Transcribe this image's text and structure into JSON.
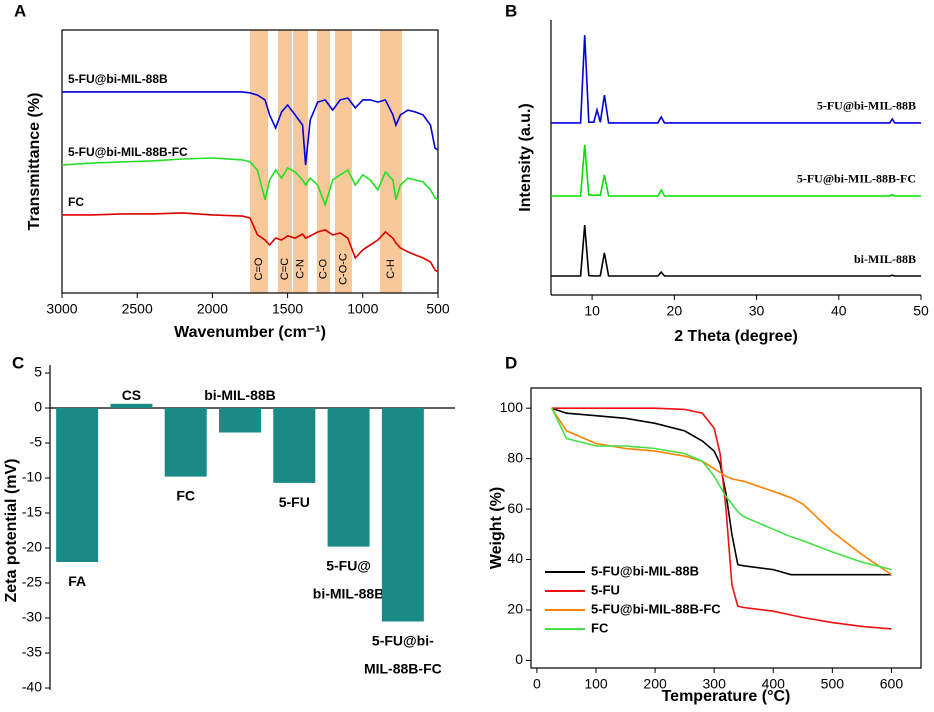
{
  "chart_data": [
    {
      "type": "line",
      "panel": "A",
      "xlabel": "Wavenumber (cm⁻¹)",
      "ylabel": "Transmittance (%)",
      "xlim": [
        3000,
        500
      ],
      "xticks": [
        3000,
        2500,
        2000,
        1500,
        1000,
        500
      ],
      "ylim": [
        -2.5,
        106.2
      ],
      "x": [
        3000,
        2800,
        2600,
        2400,
        2200,
        2000,
        1800,
        1750,
        1700,
        1650,
        1620,
        1580,
        1540,
        1500,
        1450,
        1400,
        1380,
        1350,
        1300,
        1250,
        1200,
        1150,
        1100,
        1050,
        1000,
        950,
        900,
        850,
        800,
        780,
        750,
        700,
        650,
        600,
        550,
        520,
        500
      ],
      "series": [
        {
          "name": "5-FU@bi-MIL-88B",
          "color": "#0000dd",
          "values": [
            80.6,
            80.6,
            80.6,
            80.6,
            80.6,
            80.6,
            80.6,
            80.2,
            79.3,
            77.3,
            71.1,
            65.7,
            72.3,
            75.2,
            71.1,
            66.9,
            50.4,
            69.0,
            76.4,
            77.3,
            73.1,
            77.3,
            78.1,
            74.0,
            77.3,
            77.3,
            76.4,
            77.3,
            71.1,
            66.9,
            71.1,
            73.1,
            72.3,
            71.1,
            66.9,
            57.4,
            56.6
          ]
        },
        {
          "name": "5-FU@bi-MIL-88B-FC",
          "color": "#22e022",
          "values": [
            50.4,
            51.2,
            51.7,
            52.1,
            52.9,
            53.3,
            52.5,
            51.7,
            48.3,
            36.0,
            44.2,
            48.3,
            45.0,
            49.2,
            47.5,
            44.2,
            42.1,
            45.0,
            42.1,
            33.9,
            44.2,
            46.3,
            48.3,
            42.1,
            46.3,
            44.2,
            40.1,
            47.5,
            44.2,
            36.0,
            42.1,
            45.0,
            44.2,
            43.4,
            40.1,
            36.8,
            36.0
          ]
        },
        {
          "name": "FC",
          "color": "#dd0000",
          "values": [
            29.8,
            29.8,
            30.2,
            30.2,
            30.6,
            29.8,
            29.3,
            28.5,
            21.5,
            19.4,
            17.4,
            20.2,
            19.4,
            21.1,
            20.2,
            21.9,
            20.2,
            21.1,
            22.7,
            23.6,
            21.5,
            22.3,
            20.2,
            12.0,
            15.3,
            17.4,
            19.4,
            22.7,
            20.2,
            18.2,
            16.1,
            14.5,
            13.2,
            12.0,
            10.3,
            7.0,
            6.2
          ]
        }
      ],
      "bands": [
        {
          "label": "C=O",
          "from": 1750,
          "to": 1630,
          "color": "#f8c89a"
        },
        {
          "label": "C=C",
          "from": 1564,
          "to": 1471,
          "color": "#f8c89a"
        },
        {
          "label": "C-N",
          "from": 1464,
          "to": 1364,
          "color": "#f8c89a"
        },
        {
          "label": "C-O",
          "from": 1305,
          "to": 1218,
          "color": "#f8c89a"
        },
        {
          "label": "C-O-C",
          "from": 1185,
          "to": 1072,
          "color": "#f8c89a"
        },
        {
          "label": "C-H",
          "from": 886,
          "to": 740,
          "color": "#f8c89a"
        }
      ]
    },
    {
      "type": "line",
      "panel": "B",
      "xlabel": "2 Theta (degree)",
      "ylabel": "Intensity (a.u.)",
      "xlim": [
        5,
        50
      ],
      "xticks": [
        10,
        20,
        30,
        40,
        50
      ],
      "ylim": [
        0,
        105.8
      ],
      "x": [
        5,
        8.6,
        9.1,
        9.6,
        10.2,
        10.6,
        11.0,
        11.5,
        12.0,
        18.0,
        18.4,
        18.8,
        46.2,
        46.5,
        46.8,
        50
      ],
      "series": [
        {
          "name": "5-FU@bi-MIL-88B",
          "color": "#0000dd",
          "values": [
            66.2,
            66.2,
            100,
            66.5,
            66.5,
            71.2,
            66.5,
            76.9,
            66.2,
            66.2,
            68.5,
            66.2,
            66.2,
            67.7,
            66.2,
            66.2
          ]
        },
        {
          "name": "5-FU@bi-MIL-88B-FC",
          "color": "#00e000",
          "values": [
            38.1,
            38.1,
            57.7,
            38.5,
            38.3,
            38.5,
            38.3,
            46.2,
            38.1,
            38.1,
            40.4,
            38.1,
            38.1,
            38.6,
            38.1,
            38.1
          ]
        },
        {
          "name": "bi-MIL-88B",
          "color": "#000000",
          "values": [
            7.3,
            7.3,
            26.9,
            7.5,
            7.3,
            7.3,
            7.4,
            16.2,
            7.3,
            7.3,
            8.8,
            7.3,
            7.3,
            7.6,
            7.3,
            7.3
          ]
        }
      ]
    },
    {
      "type": "bar",
      "panel": "C",
      "ylabel": "Zeta potential (mV)",
      "color": "#1a8a87",
      "categories": [
        "FA",
        "CS",
        "FC",
        "bi-MIL-88B",
        "5-FU",
        "5-FU@\nbi-MIL-88B",
        "5-FU@bi-\nMIL-88B-FC"
      ],
      "values": [
        -22,
        0.6,
        -9.8,
        -3.5,
        -10.7,
        -19.8,
        -30.5
      ],
      "ylim": [
        -40,
        5
      ],
      "yticks": [
        5,
        0,
        -5,
        -10,
        -15,
        -20,
        -25,
        -30,
        -35,
        -40
      ]
    },
    {
      "type": "line",
      "panel": "D",
      "xlabel": "Temperature (°C)",
      "ylabel": "Weight (%)",
      "xlim": [
        -10,
        650
      ],
      "xticks": [
        0,
        100,
        200,
        300,
        400,
        500,
        600
      ],
      "ylim": [
        -3,
        108
      ],
      "yticks": [
        0,
        20,
        40,
        60,
        80,
        100
      ],
      "legend": "lower left",
      "x": [
        25,
        50,
        100,
        150,
        200,
        250,
        280,
        300,
        310,
        320,
        330,
        340,
        350,
        400,
        430,
        450,
        500,
        550,
        600
      ],
      "series": [
        {
          "name": "5-FU@bi-MIL-88B",
          "color": "#000000",
          "values": [
            100,
            98,
            97,
            96,
            94,
            91,
            87,
            83,
            78,
            66,
            50,
            38,
            37.5,
            36,
            34,
            34,
            34,
            34,
            34
          ]
        },
        {
          "name": "5-FU",
          "color": "#ee1111",
          "values": [
            100,
            100,
            100,
            100,
            100,
            99.5,
            98,
            92,
            82,
            60,
            30,
            21.5,
            21,
            19.5,
            18,
            17,
            15,
            13.5,
            12.5
          ]
        },
        {
          "name": "5-FU@bi-MIL-88B-FC",
          "color": "#ff8000",
          "values": [
            100,
            91,
            86,
            84,
            83,
            81,
            79,
            76,
            74.5,
            73,
            72,
            71.5,
            71,
            67,
            64.5,
            62,
            51,
            42,
            34
          ]
        },
        {
          "name": "FC",
          "color": "#44e044",
          "values": [
            100,
            88,
            85,
            85,
            84,
            82,
            79,
            73,
            69,
            65,
            62,
            59,
            57,
            52,
            49,
            47.5,
            43,
            39,
            36
          ]
        }
      ]
    }
  ]
}
